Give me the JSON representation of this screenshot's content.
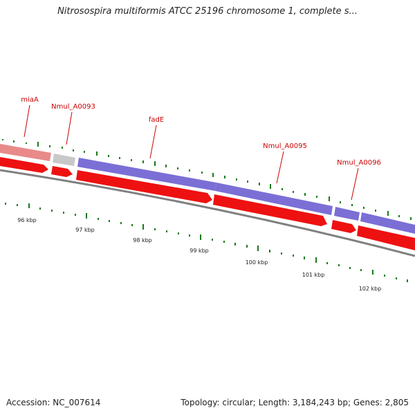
{
  "title": "Nitrosospira multiformis ATCC 25196 chromosome 1, complete s...",
  "footer": {
    "accession": "Accession: NC_007614",
    "summary": "Topology: circular; Length: 3,184,243 bp; Genes: 2,805"
  },
  "colors": {
    "gene_label": "#cc0000",
    "feature_pink": "#e88a8a",
    "feature_grey": "#c8c8c8",
    "feature_purple": "#7b6fd6",
    "cds_red": "#ee1111",
    "backbone": "#808080",
    "gc_tick": "#1a7a1a"
  },
  "gene_labels": [
    "miaA",
    "Nmul_A0093",
    "fadE",
    "Nmul_A0095",
    "Nmul_A0096"
  ],
  "scale_labels": [
    "96 kbp",
    "97 kbp",
    "98 kbp",
    "99 kbp",
    "100 kbp",
    "101 kbp",
    "102 kbp"
  ]
}
